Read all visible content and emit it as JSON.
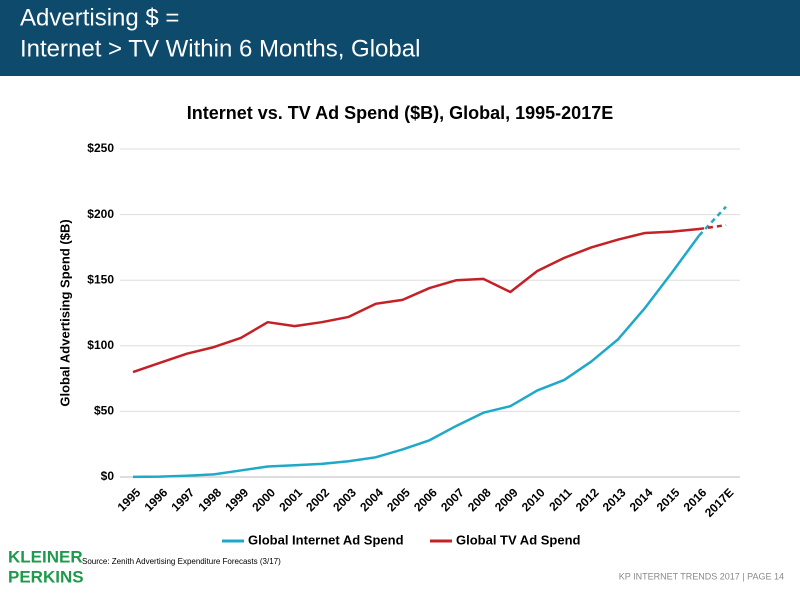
{
  "header": {
    "title_lines": [
      "Advertising $ =",
      "Internet > TV Within 6 Months, Global"
    ]
  },
  "chart_data": {
    "type": "line",
    "title": "Internet vs. TV Ad Spend ($B), Global, 1995-2017E",
    "y_label": "Global Advertising Spend ($B)",
    "categories": [
      "1995",
      "1996",
      "1997",
      "1998",
      "1999",
      "2000",
      "2001",
      "2002",
      "2003",
      "2004",
      "2005",
      "2006",
      "2007",
      "2008",
      "2009",
      "2010",
      "2011",
      "2012",
      "2013",
      "2014",
      "2015",
      "2016",
      "2017E"
    ],
    "series": [
      {
        "name": "Global Internet Ad Spend",
        "color": "#1fa9c9",
        "values": [
          0.1,
          0.3,
          1,
          2,
          5,
          8,
          9,
          10,
          12,
          15,
          21,
          28,
          39,
          49,
          54,
          66,
          74,
          88,
          105,
          129,
          156,
          184,
          206
        ]
      },
      {
        "name": "Global TV Ad Spend",
        "color": "#c42127",
        "values": [
          80,
          87,
          94,
          99,
          106,
          118,
          115,
          118,
          122,
          132,
          135,
          144,
          150,
          151,
          141,
          157,
          167,
          175,
          181,
          186,
          187,
          189,
          192
        ]
      }
    ],
    "ylim": [
      0,
      250
    ],
    "yticks": [
      {
        "value": 0,
        "label": "$0"
      },
      {
        "value": 50,
        "label": "$50"
      },
      {
        "value": 100,
        "label": "$100"
      },
      {
        "value": 150,
        "label": "$150"
      },
      {
        "value": 200,
        "label": "$200"
      },
      {
        "value": 250,
        "label": "$250"
      }
    ],
    "grid": true,
    "legend": "bottom",
    "source": "Source: Zenith Advertising Expenditure Forecasts (3/17)"
  },
  "logo": {
    "lines": [
      "KLEINER",
      "PERKINS"
    ]
  },
  "footer": {
    "text": "KP INTERNET TRENDS 2017  |  PAGE 14"
  }
}
